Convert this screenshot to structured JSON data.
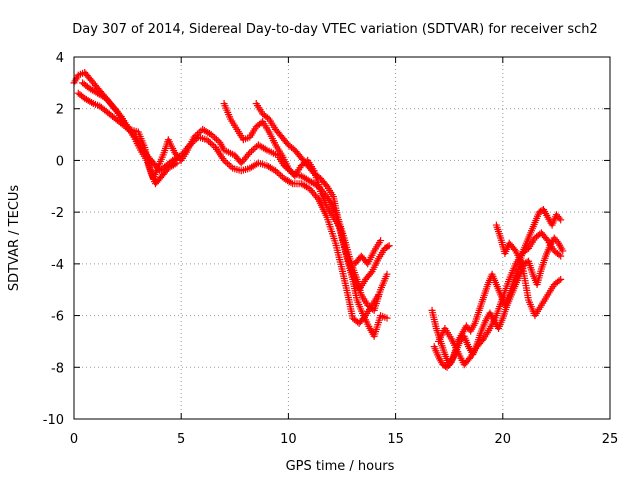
{
  "chart_data": {
    "type": "scatter",
    "title": "Day 307 of 2014, Sidereal Day-to-day VTEC variation (SDTVAR) for receiver sch2",
    "xlabel": "GPS time / hours",
    "ylabel": "SDTVAR / TECUs",
    "xlim": [
      0,
      25
    ],
    "ylim": [
      -10,
      4
    ],
    "xticks": [
      0,
      5,
      10,
      15,
      20,
      25
    ],
    "yticks": [
      -10,
      -8,
      -6,
      -4,
      -2,
      0,
      2,
      4
    ],
    "grid": true,
    "marker": "+",
    "series": [
      {
        "name": "sch2",
        "color": "#ff0000",
        "tracks": [
          [
            [
              0.0,
              3.0
            ],
            [
              0.2,
              3.3
            ],
            [
              0.5,
              3.4
            ],
            [
              0.8,
              3.1
            ],
            [
              1.0,
              2.9
            ],
            [
              1.3,
              2.6
            ],
            [
              1.6,
              2.3
            ],
            [
              2.0,
              1.9
            ],
            [
              2.3,
              1.5
            ],
            [
              2.6,
              1.2
            ],
            [
              3.0,
              1.1
            ],
            [
              3.3,
              0.5
            ],
            [
              3.5,
              -0.2
            ],
            [
              3.7,
              -0.7
            ],
            [
              3.9,
              -0.3
            ],
            [
              4.2,
              0.3
            ],
            [
              4.4,
              0.8
            ],
            [
              4.7,
              0.3
            ],
            [
              5.0,
              0.0
            ],
            [
              5.3,
              0.4
            ],
            [
              5.6,
              0.9
            ],
            [
              6.0,
              1.2
            ],
            [
              6.4,
              1.0
            ],
            [
              6.8,
              0.7
            ],
            [
              7.0,
              0.4
            ],
            [
              7.5,
              0.2
            ],
            [
              7.8,
              -0.1
            ],
            [
              8.2,
              0.3
            ],
            [
              8.6,
              0.6
            ],
            [
              9.0,
              0.4
            ],
            [
              9.5,
              0.2
            ],
            [
              9.8,
              -0.2
            ],
            [
              10.2,
              -0.5
            ],
            [
              10.6,
              -0.6
            ],
            [
              11.0,
              -0.8
            ],
            [
              11.4,
              -1.0
            ],
            [
              11.8,
              -1.4
            ],
            [
              12.2,
              -2.0
            ],
            [
              12.5,
              -3.0
            ],
            [
              12.8,
              -4.0
            ],
            [
              13.0,
              -4.6
            ],
            [
              13.2,
              -5.4
            ],
            [
              13.5,
              -6.0
            ],
            [
              13.8,
              -6.5
            ],
            [
              14.0,
              -6.8
            ],
            [
              14.3,
              -6.0
            ],
            [
              14.6,
              -6.1
            ]
          ],
          [
            [
              0.2,
              2.6
            ],
            [
              0.5,
              2.4
            ],
            [
              0.9,
              2.2
            ],
            [
              1.2,
              2.1
            ],
            [
              1.5,
              1.9
            ],
            [
              1.8,
              1.7
            ],
            [
              2.1,
              1.5
            ],
            [
              2.4,
              1.3
            ],
            [
              2.8,
              1.0
            ],
            [
              3.1,
              0.6
            ],
            [
              3.4,
              0.2
            ],
            [
              3.7,
              -0.1
            ],
            [
              4.0,
              -0.4
            ],
            [
              4.3,
              -0.2
            ],
            [
              4.6,
              0.0
            ],
            [
              5.0,
              0.2
            ],
            [
              5.4,
              0.6
            ],
            [
              5.8,
              0.9
            ],
            [
              6.2,
              0.8
            ],
            [
              6.6,
              0.5
            ],
            [
              7.0,
              0.0
            ],
            [
              7.4,
              -0.3
            ],
            [
              7.8,
              -0.4
            ],
            [
              8.2,
              -0.3
            ],
            [
              8.6,
              -0.1
            ],
            [
              9.0,
              -0.2
            ],
            [
              9.4,
              -0.4
            ],
            [
              9.8,
              -0.7
            ],
            [
              10.2,
              -0.9
            ],
            [
              10.6,
              -0.9
            ],
            [
              11.0,
              -1.1
            ],
            [
              11.4,
              -1.5
            ],
            [
              11.8,
              -2.2
            ],
            [
              12.2,
              -3.2
            ],
            [
              12.5,
              -4.2
            ],
            [
              12.8,
              -5.3
            ],
            [
              13.0,
              -6.1
            ],
            [
              13.3,
              -6.3
            ],
            [
              13.6,
              -6.0
            ],
            [
              13.9,
              -5.6
            ],
            [
              14.2,
              -5.2
            ]
          ],
          [
            [
              0.4,
              3.0
            ],
            [
              0.7,
              2.8
            ],
            [
              1.1,
              2.6
            ],
            [
              1.5,
              2.4
            ],
            [
              1.9,
              2.0
            ],
            [
              2.2,
              1.7
            ],
            [
              2.5,
              1.3
            ],
            [
              2.8,
              0.9
            ],
            [
              3.1,
              0.4
            ],
            [
              3.4,
              0.0
            ],
            [
              3.6,
              -0.5
            ],
            [
              3.8,
              -0.9
            ],
            [
              4.1,
              -0.6
            ],
            [
              4.4,
              -0.3
            ],
            [
              4.8,
              -0.1
            ]
          ],
          [
            [
              7.0,
              2.2
            ],
            [
              7.3,
              1.6
            ],
            [
              7.6,
              1.2
            ],
            [
              7.9,
              0.8
            ],
            [
              8.2,
              0.9
            ],
            [
              8.5,
              1.3
            ],
            [
              8.8,
              1.5
            ],
            [
              9.1,
              1.1
            ],
            [
              9.4,
              0.6
            ],
            [
              9.7,
              0.2
            ],
            [
              10.0,
              -0.3
            ],
            [
              10.3,
              -0.6
            ],
            [
              10.6,
              -0.2
            ],
            [
              10.9,
              0.0
            ],
            [
              11.2,
              -0.4
            ],
            [
              11.5,
              -1.2
            ],
            [
              11.8,
              -1.8
            ],
            [
              12.1,
              -2.2
            ],
            [
              12.4,
              -2.6
            ],
            [
              12.7,
              -3.6
            ],
            [
              13.0,
              -4.4
            ],
            [
              13.3,
              -5.0
            ],
            [
              13.6,
              -4.6
            ],
            [
              13.9,
              -4.3
            ],
            [
              14.2,
              -3.8
            ],
            [
              14.5,
              -3.4
            ],
            [
              14.7,
              -3.3
            ]
          ],
          [
            [
              8.5,
              2.2
            ],
            [
              8.8,
              1.8
            ],
            [
              9.1,
              1.6
            ],
            [
              9.4,
              1.2
            ],
            [
              9.7,
              0.9
            ],
            [
              10.0,
              0.6
            ],
            [
              10.3,
              0.4
            ],
            [
              10.6,
              0.1
            ],
            [
              10.9,
              -0.2
            ],
            [
              11.2,
              -0.5
            ],
            [
              11.5,
              -0.7
            ],
            [
              11.8,
              -1.0
            ],
            [
              12.1,
              -1.4
            ],
            [
              12.3,
              -2.2
            ],
            [
              12.6,
              -3.0
            ],
            [
              12.9,
              -3.9
            ],
            [
              13.2,
              -4.6
            ],
            [
              13.4,
              -5.2
            ],
            [
              13.7,
              -5.6
            ],
            [
              14.0,
              -5.8
            ],
            [
              14.3,
              -5.0
            ],
            [
              14.6,
              -4.4
            ]
          ],
          [
            [
              13.1,
              -4.0
            ],
            [
              13.4,
              -3.7
            ],
            [
              13.7,
              -4.0
            ],
            [
              14.0,
              -3.5
            ],
            [
              14.3,
              -3.1
            ]
          ],
          [
            [
              16.7,
              -5.8
            ],
            [
              16.9,
              -6.5
            ],
            [
              17.1,
              -7.0
            ],
            [
              17.3,
              -7.5
            ],
            [
              17.5,
              -7.9
            ],
            [
              17.7,
              -7.6
            ],
            [
              17.9,
              -7.0
            ],
            [
              18.1,
              -6.7
            ],
            [
              18.3,
              -6.4
            ],
            [
              18.5,
              -6.6
            ],
            [
              18.7,
              -6.3
            ],
            [
              18.9,
              -5.8
            ],
            [
              19.1,
              -5.3
            ],
            [
              19.3,
              -4.8
            ],
            [
              19.5,
              -4.4
            ],
            [
              19.7,
              -4.8
            ],
            [
              19.9,
              -5.2
            ],
            [
              20.1,
              -5.6
            ],
            [
              20.3,
              -5.2
            ],
            [
              20.5,
              -4.7
            ],
            [
              20.7,
              -4.3
            ],
            [
              20.9,
              -3.6
            ],
            [
              21.1,
              -3.2
            ],
            [
              21.3,
              -2.8
            ],
            [
              21.5,
              -2.4
            ],
            [
              21.7,
              -2.0
            ],
            [
              21.9,
              -1.9
            ],
            [
              22.1,
              -2.2
            ],
            [
              22.3,
              -2.5
            ],
            [
              22.5,
              -2.1
            ],
            [
              22.7,
              -2.3
            ]
          ],
          [
            [
              16.8,
              -7.2
            ],
            [
              17.0,
              -7.6
            ],
            [
              17.2,
              -7.9
            ],
            [
              17.4,
              -8.0
            ],
            [
              17.6,
              -7.8
            ],
            [
              17.8,
              -7.4
            ],
            [
              18.0,
              -7.0
            ],
            [
              18.2,
              -6.8
            ],
            [
              18.4,
              -7.2
            ],
            [
              18.6,
              -7.5
            ],
            [
              18.8,
              -7.1
            ],
            [
              19.0,
              -6.6
            ],
            [
              19.2,
              -6.2
            ],
            [
              19.4,
              -5.9
            ],
            [
              19.6,
              -6.2
            ],
            [
              19.8,
              -6.5
            ],
            [
              20.0,
              -6.1
            ],
            [
              20.2,
              -5.6
            ],
            [
              20.4,
              -5.2
            ],
            [
              20.6,
              -4.8
            ],
            [
              20.8,
              -4.4
            ],
            [
              21.0,
              -4.0
            ],
            [
              21.2,
              -3.9
            ],
            [
              21.4,
              -4.4
            ],
            [
              21.6,
              -4.8
            ],
            [
              21.8,
              -4.2
            ],
            [
              22.0,
              -3.7
            ],
            [
              22.2,
              -3.3
            ],
            [
              22.4,
              -3.0
            ],
            [
              22.6,
              -3.2
            ],
            [
              22.8,
              -3.5
            ]
          ],
          [
            [
              17.0,
              -7.0
            ],
            [
              17.3,
              -6.5
            ],
            [
              17.6,
              -6.9
            ],
            [
              17.9,
              -7.4
            ],
            [
              18.2,
              -7.9
            ],
            [
              18.5,
              -7.6
            ],
            [
              18.8,
              -7.2
            ],
            [
              19.1,
              -6.9
            ],
            [
              19.4,
              -6.5
            ],
            [
              19.7,
              -6.0
            ],
            [
              20.0,
              -5.3
            ],
            [
              20.3,
              -4.6
            ],
            [
              20.6,
              -4.0
            ],
            [
              20.9,
              -3.6
            ],
            [
              21.2,
              -3.4
            ],
            [
              21.5,
              -3.0
            ],
            [
              21.8,
              -2.8
            ],
            [
              22.1,
              -3.1
            ],
            [
              22.4,
              -3.5
            ],
            [
              22.7,
              -3.7
            ]
          ],
          [
            [
              19.7,
              -2.5
            ],
            [
              19.9,
              -3.0
            ],
            [
              20.1,
              -3.6
            ],
            [
              20.3,
              -3.2
            ],
            [
              20.6,
              -3.5
            ],
            [
              20.9,
              -4.0
            ],
            [
              21.2,
              -5.4
            ],
            [
              21.5,
              -6.0
            ],
            [
              21.8,
              -5.6
            ],
            [
              22.1,
              -5.2
            ],
            [
              22.4,
              -4.8
            ],
            [
              22.7,
              -4.6
            ]
          ]
        ]
      }
    ]
  }
}
